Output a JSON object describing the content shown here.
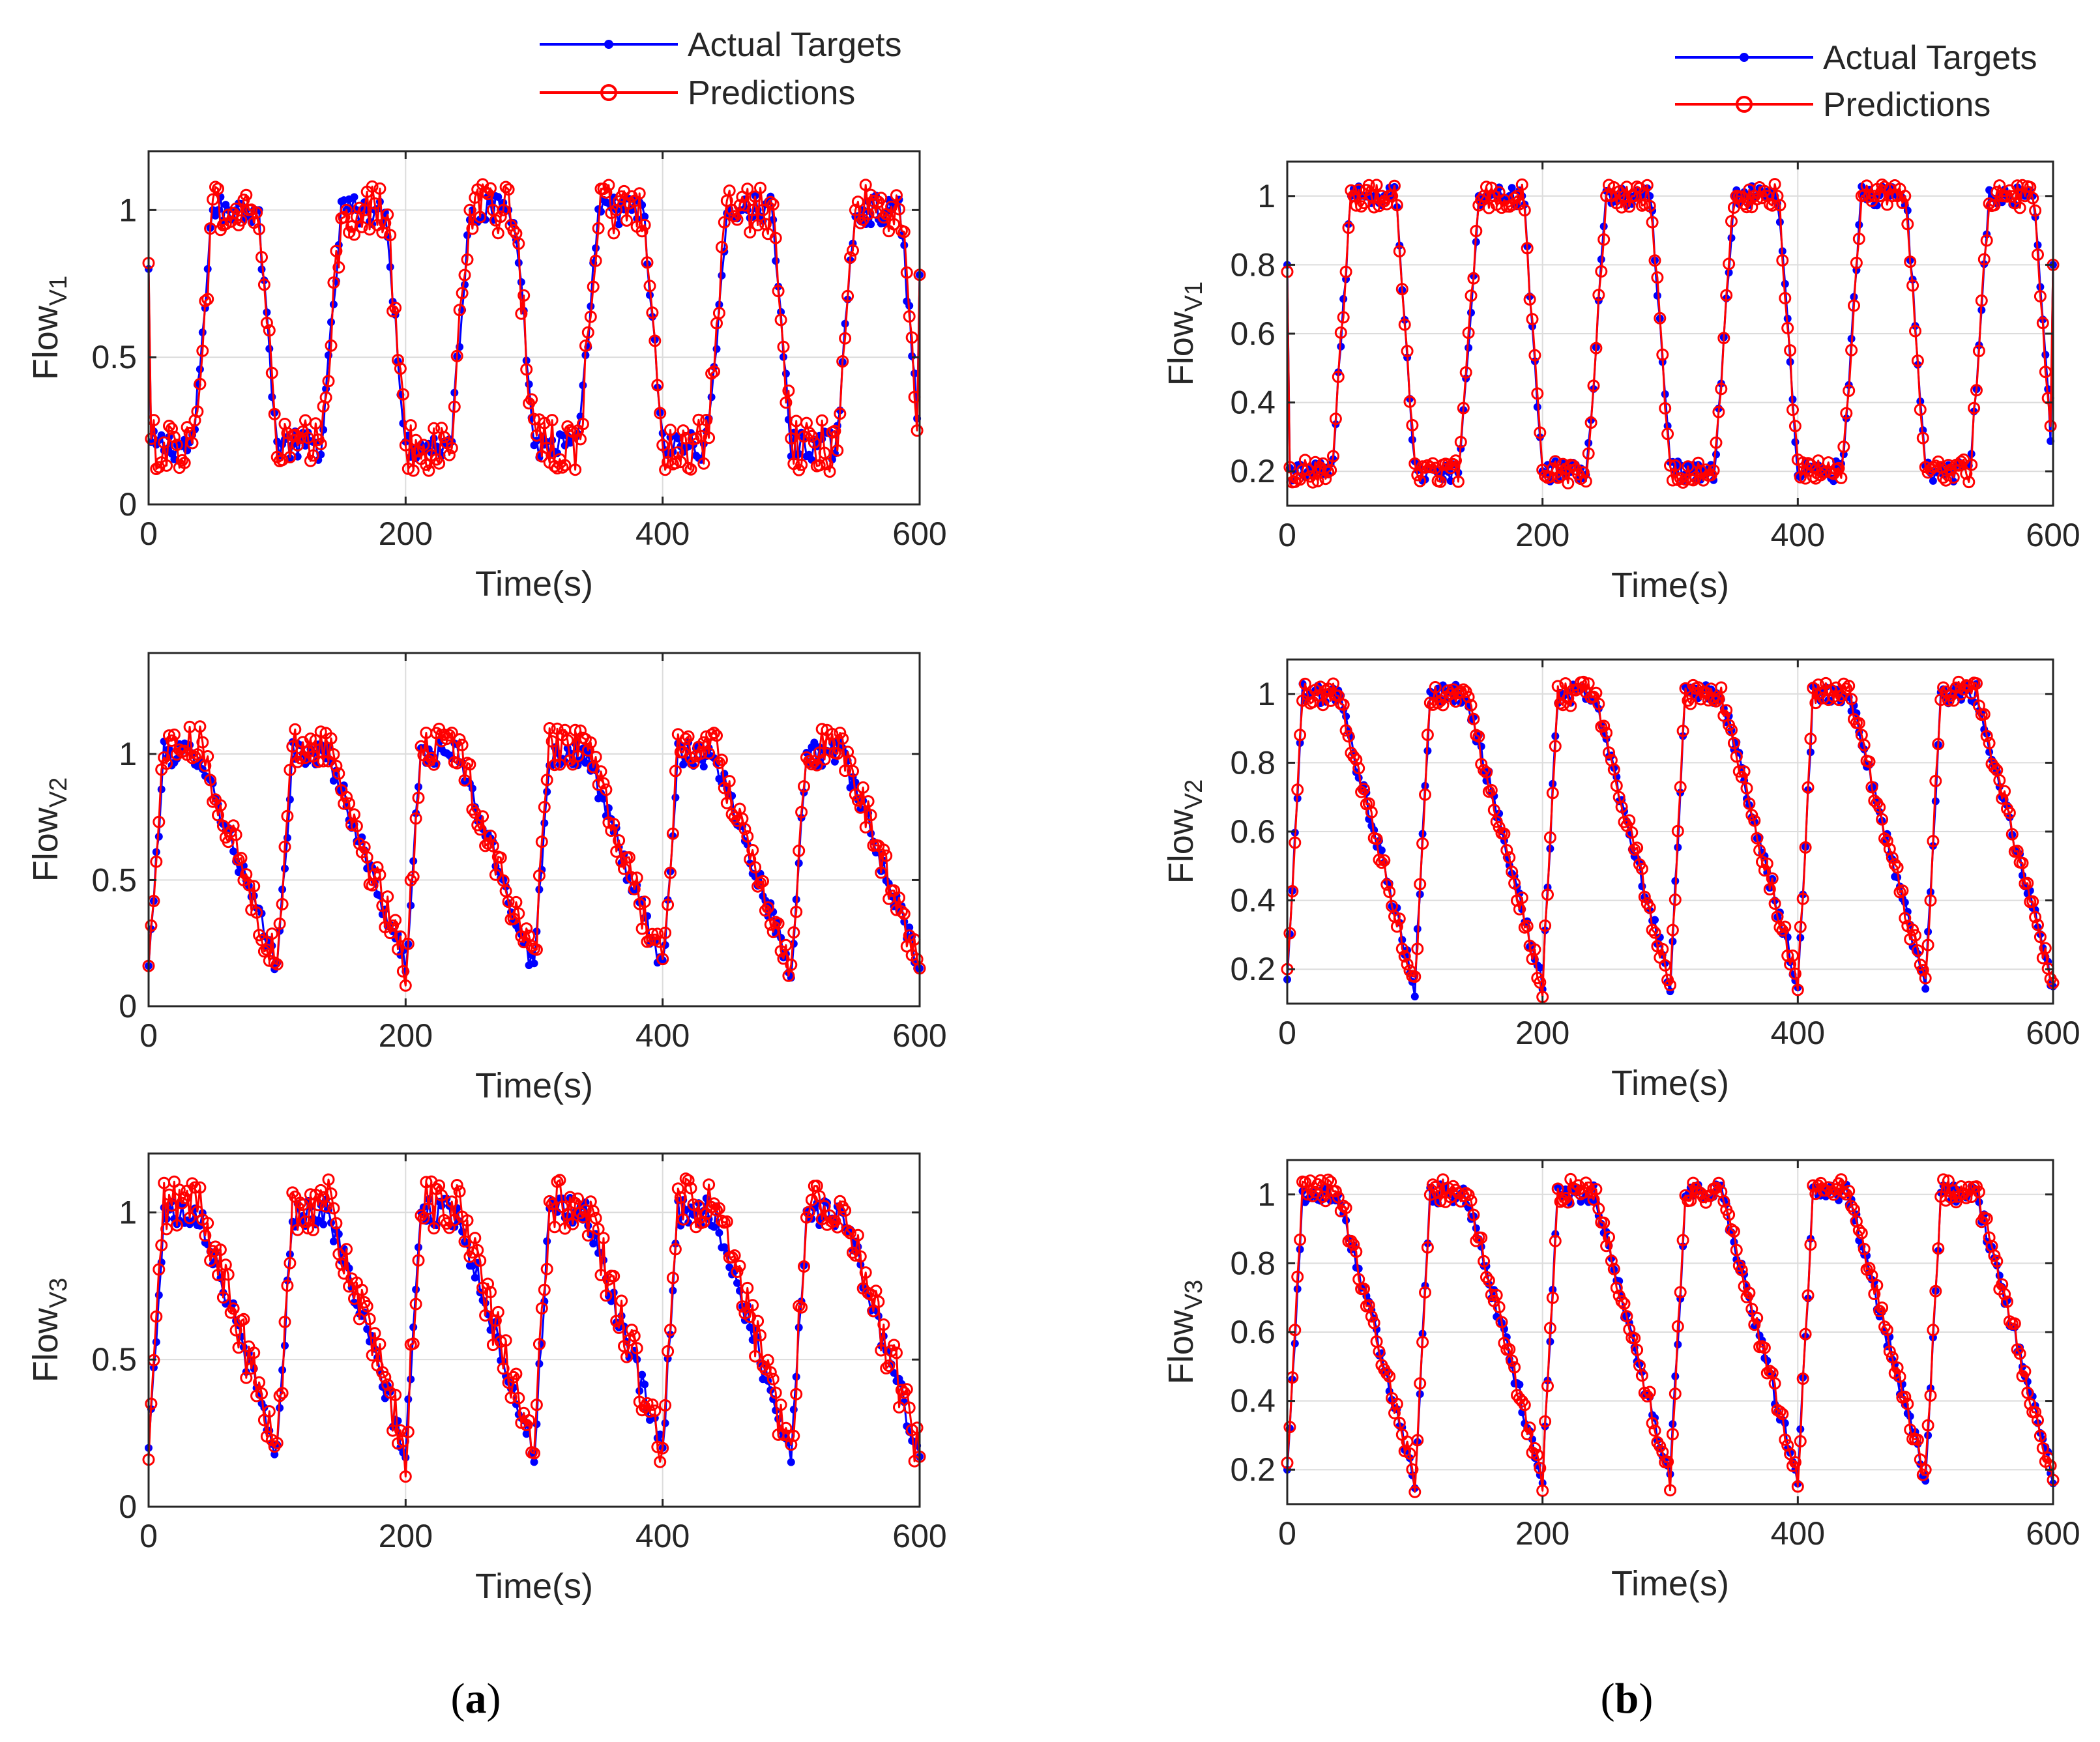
{
  "colors": {
    "actual": "#0000ff",
    "predictions": "#ff0000",
    "grid": "#dcdcdc",
    "axis": "#262626"
  },
  "legend": {
    "actual_label": "Actual Targets",
    "predictions_label": "Predictions"
  },
  "panels": [
    {
      "open": "(",
      "letter": "a",
      "close": ")"
    },
    {
      "open": "(",
      "letter": "b",
      "close": ")"
    }
  ],
  "chart_data": [
    {
      "type": "line",
      "panel": "a",
      "title": "",
      "xlabel": "Time(s)",
      "ylabel_main": "Flow",
      "ylabel_sub": "V1",
      "xlim": [
        0,
        600
      ],
      "ylim": [
        0,
        1.2
      ],
      "xticks": [
        0,
        200,
        400,
        600
      ],
      "yticks": [
        0,
        0.5,
        1
      ],
      "xtick_labels": [
        "0",
        "200",
        "400",
        "600"
      ],
      "ytick_labels": [
        "0",
        "0.5",
        "1"
      ],
      "grid": true,
      "legend": [
        "Actual Targets",
        "Predictions"
      ],
      "series": [
        {
          "name": "Actual Targets",
          "pattern": "plateau",
          "x": [
            0,
            600
          ],
          "period": 100,
          "phase": 50,
          "low": 0.2,
          "high": 1.0,
          "start": 0.8,
          "end": 0.78,
          "noise": 0.05
        },
        {
          "name": "Predictions",
          "pattern": "plateau",
          "x": [
            0,
            600
          ],
          "period": 100,
          "phase": 50,
          "low": 0.2,
          "high": 1.0,
          "start": 0.82,
          "end": 0.78,
          "noise": 0.09
        }
      ]
    },
    {
      "type": "line",
      "panel": "a",
      "title": "",
      "xlabel": "Time(s)",
      "ylabel_main": "Flow",
      "ylabel_sub": "V2",
      "xlim": [
        0,
        600
      ],
      "ylim": [
        0,
        1.4
      ],
      "xticks": [
        0,
        200,
        400,
        600
      ],
      "yticks": [
        0,
        0.5,
        1
      ],
      "xtick_labels": [
        "0",
        "200",
        "400",
        "600"
      ],
      "ytick_labels": [
        "0",
        "0.5",
        "1"
      ],
      "grid": true,
      "legend": [],
      "series": [
        {
          "name": "Actual Targets",
          "pattern": "sawtooth",
          "x": [
            0,
            600
          ],
          "period": 100,
          "low": 0.15,
          "high": 1.0,
          "start": 0.16,
          "end": 0.15,
          "noise": 0.05
        },
        {
          "name": "Predictions",
          "pattern": "sawtooth",
          "x": [
            0,
            600
          ],
          "period": 100,
          "low": 0.15,
          "high": 1.03,
          "start": 0.16,
          "end": 0.15,
          "noise": 0.08
        }
      ]
    },
    {
      "type": "line",
      "panel": "a",
      "title": "",
      "xlabel": "Time(s)",
      "ylabel_main": "Flow",
      "ylabel_sub": "V3",
      "xlim": [
        0,
        600
      ],
      "ylim": [
        0,
        1.2
      ],
      "xticks": [
        0,
        200,
        400,
        600
      ],
      "yticks": [
        0,
        0.5,
        1
      ],
      "xtick_labels": [
        "0",
        "200",
        "400",
        "600"
      ],
      "ytick_labels": [
        "0",
        "0.5",
        "1"
      ],
      "grid": true,
      "legend": [],
      "series": [
        {
          "name": "Actual Targets",
          "pattern": "sawtooth",
          "x": [
            0,
            600
          ],
          "period": 100,
          "low": 0.18,
          "high": 1.0,
          "start": 0.2,
          "end": 0.17,
          "noise": 0.05
        },
        {
          "name": "Predictions",
          "pattern": "sawtooth",
          "x": [
            0,
            600
          ],
          "period": 100,
          "low": 0.18,
          "high": 1.03,
          "start": 0.16,
          "end": 0.17,
          "noise": 0.09
        }
      ]
    },
    {
      "type": "line",
      "panel": "b",
      "title": "",
      "xlabel": "Time(s)",
      "ylabel_main": "Flow",
      "ylabel_sub": "V1",
      "xlim": [
        0,
        600
      ],
      "ylim": [
        0.1,
        1.1
      ],
      "xticks": [
        0,
        200,
        400,
        600
      ],
      "yticks": [
        0.2,
        0.4,
        0.6,
        0.8,
        1
      ],
      "xtick_labels": [
        "0",
        "200",
        "400",
        "600"
      ],
      "ytick_labels": [
        "0.2",
        "0.4",
        "0.6",
        "0.8",
        "1"
      ],
      "grid": true,
      "legend": [
        "Actual Targets",
        "Predictions"
      ],
      "series": [
        {
          "name": "Actual Targets",
          "pattern": "plateau",
          "x": [
            0,
            600
          ],
          "period": 100,
          "phase": 50,
          "low": 0.2,
          "high": 1.0,
          "start": 0.8,
          "end": 0.8,
          "noise": 0.03
        },
        {
          "name": "Predictions",
          "pattern": "plateau",
          "x": [
            0,
            600
          ],
          "period": 100,
          "phase": 50,
          "low": 0.2,
          "high": 1.0,
          "start": 0.78,
          "end": 0.8,
          "noise": 0.035
        }
      ]
    },
    {
      "type": "line",
      "panel": "b",
      "title": "",
      "xlabel": "Time(s)",
      "ylabel_main": "Flow",
      "ylabel_sub": "V2",
      "xlim": [
        0,
        600
      ],
      "ylim": [
        0.1,
        1.1
      ],
      "xticks": [
        0,
        200,
        400,
        600
      ],
      "yticks": [
        0.2,
        0.4,
        0.6,
        0.8,
        1
      ],
      "xtick_labels": [
        "0",
        "200",
        "400",
        "600"
      ],
      "ytick_labels": [
        "0.2",
        "0.4",
        "0.6",
        "0.8",
        "1"
      ],
      "grid": true,
      "legend": [],
      "series": [
        {
          "name": "Actual Targets",
          "pattern": "sawtooth",
          "x": [
            0,
            600
          ],
          "period": 100,
          "low": 0.15,
          "high": 1.0,
          "start": 0.17,
          "end": 0.15,
          "noise": 0.03
        },
        {
          "name": "Predictions",
          "pattern": "sawtooth",
          "x": [
            0,
            600
          ],
          "period": 100,
          "low": 0.15,
          "high": 1.0,
          "start": 0.2,
          "end": 0.16,
          "noise": 0.035
        }
      ]
    },
    {
      "type": "line",
      "panel": "b",
      "title": "",
      "xlabel": "Time(s)",
      "ylabel_main": "Flow",
      "ylabel_sub": "V3",
      "xlim": [
        0,
        600
      ],
      "ylim": [
        0.1,
        1.1
      ],
      "xticks": [
        0,
        200,
        400,
        600
      ],
      "yticks": [
        0.2,
        0.4,
        0.6,
        0.8,
        1
      ],
      "xtick_labels": [
        "0",
        "200",
        "400",
        "600"
      ],
      "ytick_labels": [
        "0.2",
        "0.4",
        "0.6",
        "0.8",
        "1"
      ],
      "grid": true,
      "legend": [],
      "series": [
        {
          "name": "Actual Targets",
          "pattern": "sawtooth",
          "x": [
            0,
            600
          ],
          "period": 100,
          "low": 0.17,
          "high": 1.0,
          "start": 0.2,
          "end": 0.16,
          "noise": 0.03
        },
        {
          "name": "Predictions",
          "pattern": "sawtooth",
          "x": [
            0,
            600
          ],
          "period": 100,
          "low": 0.17,
          "high": 1.01,
          "start": 0.22,
          "end": 0.17,
          "noise": 0.035
        }
      ]
    }
  ]
}
